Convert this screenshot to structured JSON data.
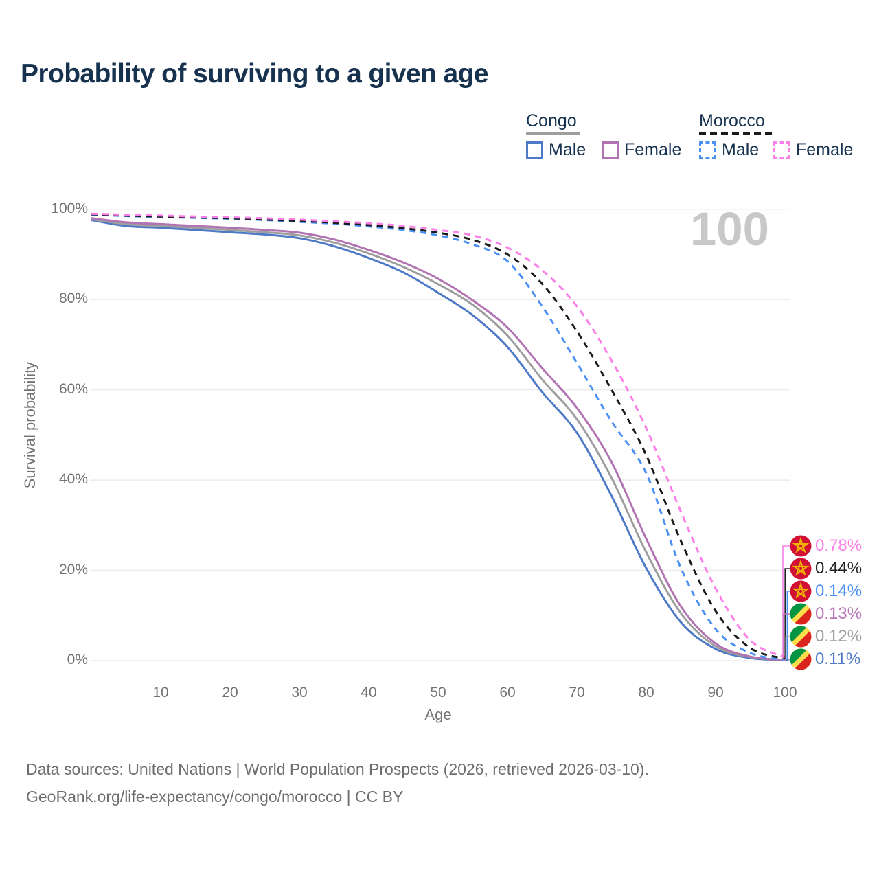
{
  "title": "Probability of surviving to a given age",
  "age_indicator": "100",
  "legend": {
    "groups": [
      {
        "name": "Congo",
        "line_style": "solid",
        "line_color": "#9e9e9e",
        "items": [
          {
            "label": "Male",
            "color": "#4e79c7"
          },
          {
            "label": "Female",
            "color": "#b273b2"
          }
        ]
      },
      {
        "name": "Morocco",
        "line_style": "dashed",
        "line_color": "#1a1a1a",
        "items": [
          {
            "label": "Male",
            "color": "#4a90f5"
          },
          {
            "label": "Female",
            "color": "#fc7ee8"
          }
        ]
      }
    ]
  },
  "axes": {
    "x_title": "Age",
    "y_title": "Survival probability",
    "x_ticks": [
      10,
      20,
      30,
      40,
      50,
      60,
      70,
      80,
      90,
      100
    ],
    "y_ticks": [
      "0%",
      "20%",
      "40%",
      "60%",
      "80%",
      "100%"
    ]
  },
  "chart_data": {
    "type": "line",
    "title": "Probability of surviving to a given age",
    "xlabel": "Age",
    "ylabel": "Survival probability",
    "xlim": [
      0,
      100
    ],
    "ylim": [
      0,
      100
    ],
    "grid": "horizontal",
    "legend_position": "top-right",
    "x": [
      0,
      5,
      10,
      15,
      20,
      25,
      30,
      35,
      40,
      45,
      50,
      55,
      60,
      65,
      70,
      75,
      80,
      85,
      90,
      95,
      100
    ],
    "series": [
      {
        "name": "Congo Male",
        "country": "Congo",
        "sex": "male",
        "color": "#4e79c7",
        "dash": "solid",
        "values": [
          97.6,
          96.3,
          95.9,
          95.4,
          94.9,
          94.4,
          93.6,
          91.8,
          89.2,
          86.0,
          81.5,
          76.5,
          69.5,
          59.5,
          50.5,
          36.5,
          20.5,
          8.5,
          2.6,
          0.6,
          0.11
        ]
      },
      {
        "name": "Congo Both sexes",
        "country": "Congo",
        "sex": "both",
        "color": "#9e9e9e",
        "dash": "solid",
        "values": [
          97.8,
          96.7,
          96.3,
          95.9,
          95.4,
          94.9,
          94.2,
          92.6,
          90.2,
          87.2,
          83.4,
          78.8,
          72.0,
          62.3,
          53.5,
          40.5,
          24.0,
          10.5,
          3.2,
          0.8,
          0.12
        ]
      },
      {
        "name": "Congo Female",
        "country": "Congo",
        "sex": "female",
        "color": "#b273b2",
        "dash": "solid",
        "values": [
          98.0,
          97.1,
          96.7,
          96.3,
          95.9,
          95.4,
          94.8,
          93.3,
          91.0,
          88.2,
          84.6,
          79.8,
          73.8,
          64.8,
          56.0,
          44.0,
          27.0,
          12.0,
          3.8,
          0.9,
          0.13
        ]
      },
      {
        "name": "Morocco Male",
        "country": "Morocco",
        "sex": "male",
        "color": "#4a90f5",
        "dash": "dashed",
        "values": [
          98.8,
          98.5,
          98.3,
          98.1,
          97.9,
          97.6,
          97.2,
          96.8,
          96.2,
          95.4,
          94.2,
          92.2,
          88.5,
          78.5,
          66.0,
          53.0,
          41.5,
          20.5,
          7.0,
          1.7,
          0.14
        ]
      },
      {
        "name": "Morocco Both sexes",
        "country": "Morocco",
        "sex": "both",
        "color": "#1a1a1a",
        "dash": "dashed",
        "values": [
          98.9,
          98.6,
          98.4,
          98.2,
          98.0,
          97.7,
          97.4,
          97.0,
          96.5,
          95.8,
          94.8,
          93.2,
          90.0,
          83.5,
          73.0,
          60.0,
          45.5,
          26.5,
          11.0,
          2.8,
          0.44
        ]
      },
      {
        "name": "Morocco Female",
        "country": "Morocco",
        "sex": "female",
        "color": "#fc7ee8",
        "dash": "dashed",
        "values": [
          99.0,
          98.8,
          98.6,
          98.4,
          98.2,
          98.0,
          97.7,
          97.3,
          96.9,
          96.3,
          95.4,
          94.2,
          91.5,
          86.5,
          78.5,
          66.5,
          51.5,
          33.0,
          16.0,
          4.5,
          0.78
        ]
      }
    ]
  },
  "end_labels": [
    {
      "value": "0.78%",
      "numeric": 0.78,
      "color": "#fc7ee8",
      "flag": "morocco",
      "series": "Morocco Female"
    },
    {
      "value": "0.44%",
      "numeric": 0.44,
      "color": "#222222",
      "flag": "morocco",
      "series": "Morocco Both sexes"
    },
    {
      "value": "0.14%",
      "numeric": 0.14,
      "color": "#4a90f5",
      "flag": "morocco",
      "series": "Morocco Male"
    },
    {
      "value": "0.13%",
      "numeric": 0.13,
      "color": "#bb76bb",
      "flag": "congo",
      "series": "Congo Female"
    },
    {
      "value": "0.12%",
      "numeric": 0.12,
      "color": "#9e9e9e",
      "flag": "congo",
      "series": "Congo Both sexes"
    },
    {
      "value": "0.11%",
      "numeric": 0.11,
      "color": "#4e79c7",
      "flag": "congo",
      "series": "Congo Male"
    }
  ],
  "footer": {
    "line1": "Data sources: United Nations | World Population Prospects (2026, retrieved 2026-03-10).",
    "line2": "GeoRank.org/life-expectancy/congo/morocco | CC BY"
  }
}
